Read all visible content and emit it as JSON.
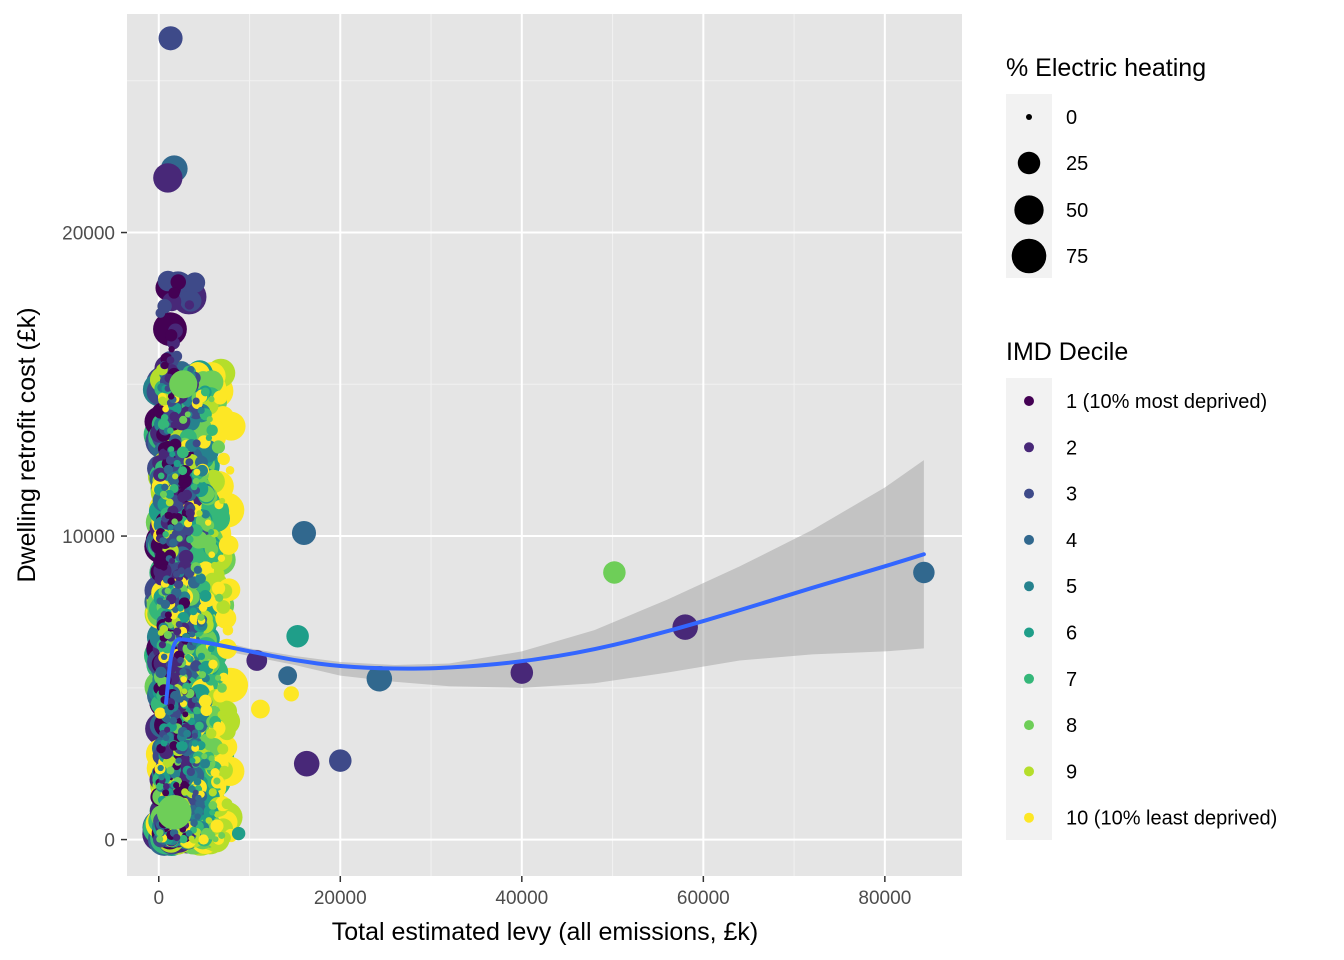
{
  "chart_data": {
    "type": "scatter",
    "xlabel": "Total estimated levy (all emissions, £k)",
    "ylabel": "Dwelling retrofit cost (£k)",
    "xlim": [
      -3500,
      88500
    ],
    "ylim": [
      -1200,
      27200
    ],
    "x_ticks": [
      0,
      20000,
      40000,
      60000,
      80000
    ],
    "x_tick_labels": [
      "0",
      "20000",
      "40000",
      "60000",
      "80000"
    ],
    "y_ticks": [
      0,
      10000,
      20000
    ],
    "y_tick_labels": [
      "0",
      "10000",
      "20000"
    ],
    "grid": true,
    "panel_background": "#e5e5e5",
    "size_legend": {
      "title": "% Electric heating",
      "values": [
        0,
        25,
        50,
        75
      ],
      "labels": [
        "0",
        "25",
        "50",
        "75"
      ]
    },
    "color_legend": {
      "title": "IMD Decile",
      "labels": [
        "1 (10% most deprived)",
        "2",
        "3",
        "4",
        "5",
        "6",
        "7",
        "8",
        "9",
        "10 (10% least deprived)"
      ],
      "colors": [
        "#440154",
        "#482878",
        "#3e4a89",
        "#31688e",
        "#26828e",
        "#1f9e89",
        "#35b779",
        "#6ece58",
        "#b5de2b",
        "#fde725"
      ]
    },
    "outliers": [
      {
        "x": 1300,
        "y": 26400,
        "decile": 3,
        "pct_electric": 30
      },
      {
        "x": 16000,
        "y": 10100,
        "decile": 4,
        "pct_electric": 30
      },
      {
        "x": 15300,
        "y": 6700,
        "decile": 6,
        "pct_electric": 25
      },
      {
        "x": 10800,
        "y": 5900,
        "decile": 2,
        "pct_electric": 20
      },
      {
        "x": 14200,
        "y": 5400,
        "decile": 4,
        "pct_electric": 15
      },
      {
        "x": 14600,
        "y": 4800,
        "decile": 10,
        "pct_electric": 8
      },
      {
        "x": 11200,
        "y": 4300,
        "decile": 10,
        "pct_electric": 15
      },
      {
        "x": 24300,
        "y": 5300,
        "decile": 4,
        "pct_electric": 35
      },
      {
        "x": 16300,
        "y": 2500,
        "decile": 2,
        "pct_electric": 35
      },
      {
        "x": 20000,
        "y": 2600,
        "decile": 3,
        "pct_electric": 25
      },
      {
        "x": 40000,
        "y": 5500,
        "decile": 2,
        "pct_electric": 25
      },
      {
        "x": 50200,
        "y": 8800,
        "decile": 8,
        "pct_electric": 25
      },
      {
        "x": 58000,
        "y": 7000,
        "decile": 2,
        "pct_electric": 35
      },
      {
        "x": 84300,
        "y": 8800,
        "decile": 4,
        "pct_electric": 22
      },
      {
        "x": 8800,
        "y": 200,
        "decile": 6,
        "pct_electric": 5
      },
      {
        "x": 2700,
        "y": 15000,
        "decile": 8,
        "pct_electric": 45
      },
      {
        "x": 1700,
        "y": 22100,
        "decile": 4,
        "pct_electric": 40
      },
      {
        "x": 1000,
        "y": 21800,
        "decile": 2,
        "pct_electric": 50
      },
      {
        "x": 1700,
        "y": 900,
        "decile": 8,
        "pct_electric": 75
      }
    ],
    "dense_cluster": {
      "description_range_x": [
        0,
        8000
      ],
      "description_range_y": [
        0,
        21000
      ]
    },
    "smooth_line": {
      "x": [
        800,
        1500,
        3000,
        6000,
        10000,
        15000,
        20000,
        26000,
        32000,
        40000,
        48000,
        56000,
        64000,
        72000,
        80000,
        84300
      ],
      "y": [
        4500,
        6600,
        6600,
        6450,
        6200,
        5900,
        5700,
        5620,
        5650,
        5850,
        6250,
        6850,
        7550,
        8300,
        9000,
        9400
      ],
      "ci_upper": [
        5200,
        6900,
        6800,
        6600,
        6300,
        6050,
        5850,
        5750,
        5800,
        6200,
        6900,
        7900,
        9000,
        10200,
        11600,
        12500
      ],
      "ci_lower": [
        3800,
        6300,
        6400,
        6300,
        6050,
        5750,
        5400,
        5200,
        5050,
        5000,
        5150,
        5500,
        5900,
        6100,
        6200,
        6300
      ],
      "color": "#3366ff",
      "ribbon_color": "#999999"
    }
  }
}
